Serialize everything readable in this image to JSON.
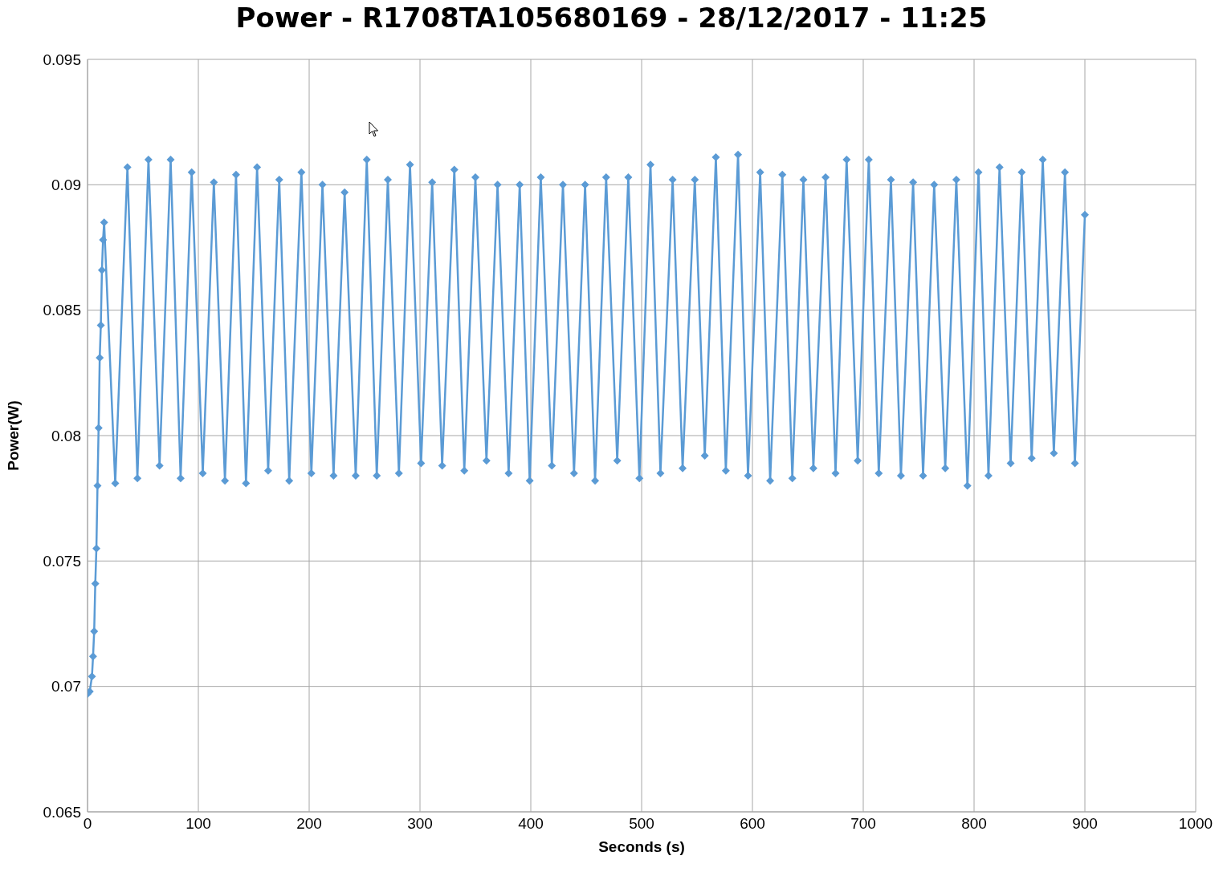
{
  "chart_data": {
    "type": "line",
    "title": "Power - R1708TA105680169 - 28/12/2017 - 11:25",
    "xlabel": "Seconds (s)",
    "ylabel": "Power(W)",
    "xlim": [
      0,
      1000
    ],
    "xticks": [
      0,
      100,
      200,
      300,
      400,
      500,
      600,
      700,
      800,
      900,
      1000
    ],
    "ylim": [
      0.065,
      0.095
    ],
    "yticks": [
      0.065,
      0.07,
      0.075,
      0.08,
      0.085,
      0.09,
      0.095
    ],
    "grid": true,
    "marker": "diamond",
    "line_style": "solid",
    "series": [
      {
        "color": "#5b9bd5",
        "x": [
          0,
          2,
          4,
          5,
          6,
          7,
          8,
          9,
          10,
          11,
          12,
          13,
          14,
          15,
          25,
          36,
          45,
          55,
          65,
          75,
          84,
          94,
          104,
          114,
          124,
          134,
          143,
          153,
          163,
          173,
          182,
          193,
          202,
          212,
          222,
          232,
          242,
          252,
          261,
          271,
          281,
          291,
          301,
          311,
          320,
          331,
          340,
          350,
          360,
          370,
          380,
          390,
          399,
          409,
          419,
          429,
          439,
          449,
          458,
          468,
          478,
          488,
          498,
          508,
          517,
          528,
          537,
          548,
          557,
          567,
          576,
          587,
          596,
          607,
          616,
          627,
          636,
          646,
          655,
          666,
          675,
          685,
          695,
          705,
          714,
          725,
          734,
          745,
          754,
          764,
          774,
          784,
          794,
          804,
          813,
          823,
          833,
          843,
          852,
          862,
          872,
          882,
          891,
          900
        ],
        "values": [
          0.0697,
          0.0698,
          0.0704,
          0.0712,
          0.0722,
          0.0741,
          0.0755,
          0.078,
          0.0803,
          0.0831,
          0.0844,
          0.0866,
          0.0878,
          0.0885,
          0.0781,
          0.0907,
          0.0783,
          0.091,
          0.0788,
          0.091,
          0.0783,
          0.0905,
          0.0785,
          0.0901,
          0.0782,
          0.0904,
          0.0781,
          0.0907,
          0.0786,
          0.0902,
          0.0782,
          0.0905,
          0.0785,
          0.09,
          0.0784,
          0.0897,
          0.0784,
          0.091,
          0.0784,
          0.0902,
          0.0785,
          0.0908,
          0.0789,
          0.0901,
          0.0788,
          0.0906,
          0.0786,
          0.0903,
          0.079,
          0.09,
          0.0785,
          0.09,
          0.0782,
          0.0903,
          0.0788,
          0.09,
          0.0785,
          0.09,
          0.0782,
          0.0903,
          0.079,
          0.0903,
          0.0783,
          0.0908,
          0.0785,
          0.0902,
          0.0787,
          0.0902,
          0.0792,
          0.0911,
          0.0786,
          0.0912,
          0.0784,
          0.0905,
          0.0782,
          0.0904,
          0.0783,
          0.0902,
          0.0787,
          0.0903,
          0.0785,
          0.091,
          0.079,
          0.091,
          0.0785,
          0.0902,
          0.0784,
          0.0901,
          0.0784,
          0.09,
          0.0787,
          0.0902,
          0.078,
          0.0905,
          0.0784,
          0.0907,
          0.0789,
          0.0905,
          0.0791,
          0.091,
          0.0793,
          0.0905,
          0.0789,
          0.0888
        ]
      }
    ]
  }
}
